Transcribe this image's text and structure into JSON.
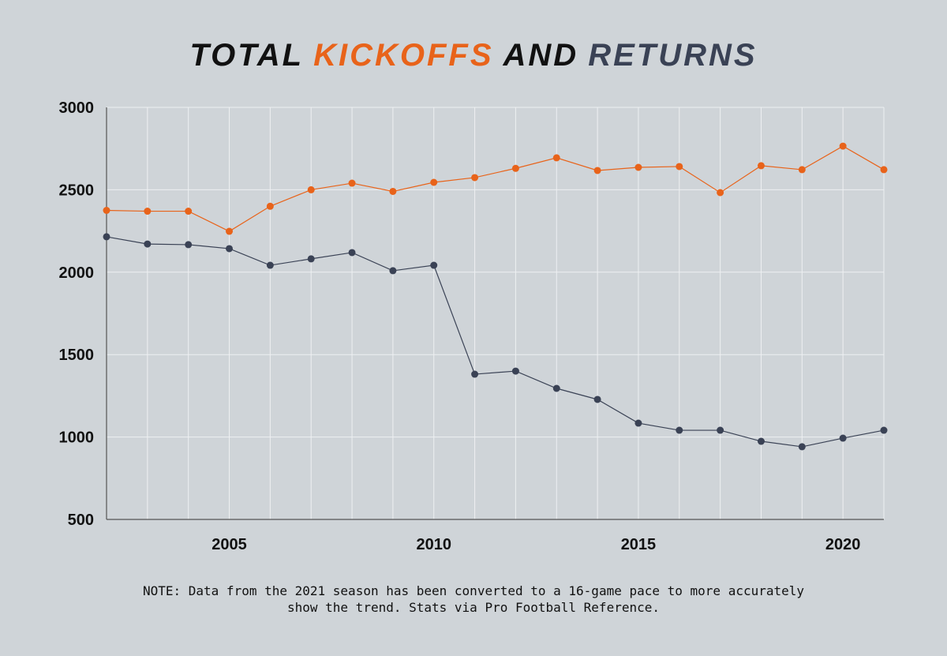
{
  "title": {
    "parts": [
      {
        "text": "TOTAL",
        "color": "#111111"
      },
      {
        "text": "KICKOFFS",
        "color": "#e8631a"
      },
      {
        "text": "AND",
        "color": "#111111"
      },
      {
        "text": "RETURNS",
        "color": "#3a4255"
      }
    ]
  },
  "note": {
    "line1": "NOTE: Data from the 2021 season has been converted to a 16-game pace to more accurately",
    "line2": "show the trend. Stats via Pro Football Reference."
  },
  "chart_data": {
    "type": "line",
    "title": "TOTAL KICKOFFS AND RETURNS",
    "xlabel": "",
    "ylabel": "",
    "x": [
      2002,
      2003,
      2004,
      2005,
      2006,
      2007,
      2008,
      2009,
      2010,
      2011,
      2012,
      2013,
      2014,
      2015,
      2016,
      2017,
      2018,
      2019,
      2020,
      2021
    ],
    "xlim": [
      2002,
      2021
    ],
    "ylim": [
      500,
      3000
    ],
    "xticks": [
      2005,
      2010,
      2015,
      2020
    ],
    "yticks": [
      500,
      1000,
      1500,
      2000,
      2500,
      3000
    ],
    "grid": true,
    "series": [
      {
        "color": "#e8631a",
        "values": [
          2375,
          2370,
          2370,
          2248,
          2400,
          2500,
          2540,
          2490,
          2545,
          2574,
          2630,
          2694,
          2617,
          2636,
          2641,
          2483,
          2646,
          2622,
          2765,
          2622
        ]
      },
      {
        "color": "#3a4255",
        "values": [
          2215,
          2171,
          2167,
          2143,
          2042,
          2081,
          2119,
          2009,
          2042,
          1381,
          1400,
          1295,
          1228,
          1084,
          1041,
          1041,
          974,
          941,
          993,
          1041
        ]
      }
    ]
  }
}
